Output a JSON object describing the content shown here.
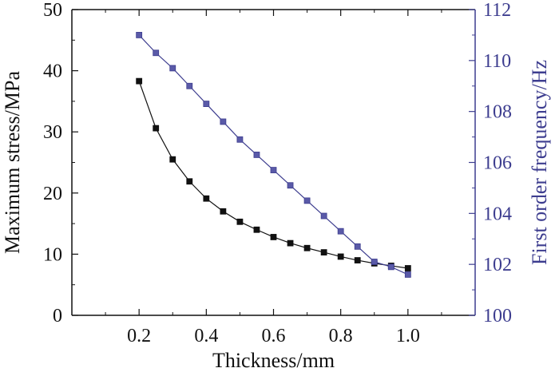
{
  "chart_data": {
    "type": "line",
    "title": "",
    "xlabel": "Thickness/mm",
    "ylabel_left": "Maximum stress/MPa",
    "ylabel_right": "First order frequency/Hz",
    "xlim": [
      0,
      1.2
    ],
    "ylim_left": [
      0,
      50
    ],
    "ylim_right": [
      100,
      112
    ],
    "x_ticks": [
      0.2,
      0.4,
      0.6,
      0.8,
      1.0
    ],
    "x_tick_labels": [
      "0.2",
      "0.4",
      "0.6",
      "0.8",
      "1.0"
    ],
    "y_left_ticks": [
      0,
      10,
      20,
      30,
      40,
      50
    ],
    "y_left_tick_labels": [
      "0",
      "10",
      "20",
      "30",
      "40",
      "50"
    ],
    "y_right_ticks": [
      100,
      102,
      104,
      106,
      108,
      110,
      112
    ],
    "y_right_tick_labels": [
      "100",
      "102",
      "104",
      "106",
      "108",
      "110",
      "112"
    ],
    "grid": false,
    "legend": "none",
    "x": [
      0.2,
      0.25,
      0.3,
      0.35,
      0.4,
      0.45,
      0.5,
      0.55,
      0.6,
      0.65,
      0.7,
      0.75,
      0.8,
      0.85,
      0.9,
      0.95,
      1.0
    ],
    "series": [
      {
        "axis": "left",
        "color": "#111111",
        "marker": "square",
        "values": [
          38.3,
          30.6,
          25.5,
          21.9,
          19.1,
          17.0,
          15.3,
          14.0,
          12.8,
          11.8,
          11.0,
          10.3,
          9.6,
          9.0,
          8.5,
          8.1,
          7.7
        ]
      },
      {
        "axis": "right",
        "color": "#3d3d8f",
        "marker": "square",
        "values": [
          111.0,
          110.3,
          109.7,
          109.0,
          108.3,
          107.6,
          106.9,
          106.3,
          105.7,
          105.1,
          104.5,
          103.9,
          103.3,
          102.7,
          102.1,
          101.9,
          101.6
        ]
      }
    ],
    "colors": {
      "axis_left": "#111111",
      "axis_right": "#3d3d8f"
    }
  }
}
